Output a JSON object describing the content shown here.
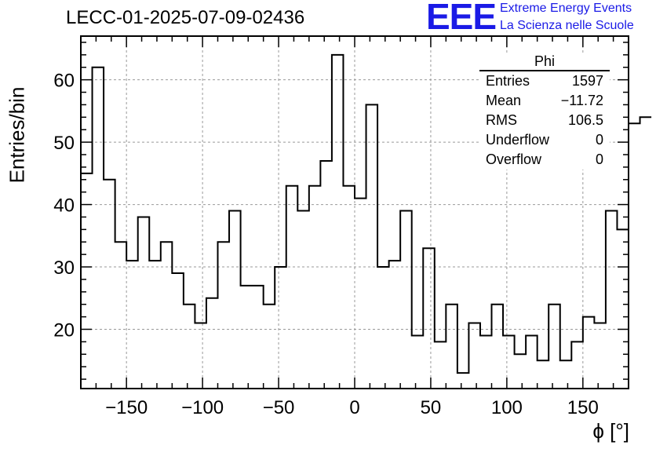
{
  "title": "LECC-01-2025-07-09-02436",
  "logo": {
    "mark": "EEE",
    "line1": "Extreme Energy Events",
    "line2": "La Scienza nelle Scuole",
    "color": "#1a1ae6"
  },
  "chart_data": {
    "type": "bar",
    "style": "step-histogram",
    "xlabel": "ϕ [°]",
    "ylabel": "Entries/bin",
    "xlim": [
      -180,
      180
    ],
    "ylim": [
      10.5,
      67
    ],
    "xticks": [
      -150,
      -100,
      -50,
      0,
      50,
      100,
      150
    ],
    "yticks": [
      20,
      30,
      40,
      50,
      60
    ],
    "grid": true,
    "bin_width": 7.5,
    "bin_edges_start": -180,
    "values": [
      45,
      62,
      44,
      34,
      31,
      38,
      31,
      34,
      29,
      24,
      21,
      25,
      34,
      39,
      27,
      27,
      24,
      30,
      43,
      39,
      43,
      47,
      64,
      43,
      41,
      56,
      30,
      31,
      39,
      19,
      33,
      18,
      24,
      13,
      21,
      19,
      24,
      19,
      16,
      19,
      15,
      24,
      15,
      18,
      22,
      21,
      39,
      36,
      53,
      54
    ],
    "stats": {
      "name": "Phi",
      "rows": [
        {
          "label": "Entries",
          "value": "1597"
        },
        {
          "label": "Mean",
          "value": "−11.72"
        },
        {
          "label": "RMS",
          "value": "106.5"
        },
        {
          "label": "Underflow",
          "value": "0"
        },
        {
          "label": "Overflow",
          "value": "0"
        }
      ],
      "placement": "top-right"
    }
  }
}
